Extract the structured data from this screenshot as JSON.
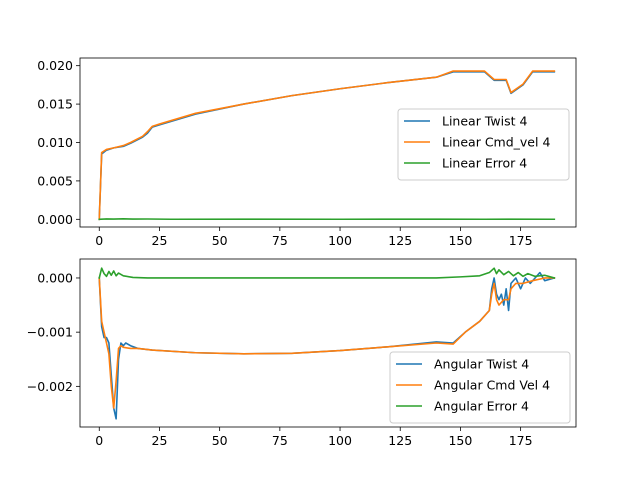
{
  "chart_data": [
    {
      "type": "line",
      "title": "",
      "xlabel": "",
      "ylabel": "",
      "xlim": [
        -8,
        198
      ],
      "ylim": [
        -0.001,
        0.021
      ],
      "xticks": [
        0,
        25,
        50,
        75,
        100,
        125,
        150,
        175
      ],
      "yticks": [
        0.0,
        0.005,
        0.01,
        0.015,
        0.02
      ],
      "ytick_labels": [
        "0.000",
        "0.005",
        "0.010",
        "0.015",
        "0.020"
      ],
      "grid": false,
      "legend_position": "center-right",
      "series": [
        {
          "name": "Linear Twist 4",
          "color": "#1f77b4",
          "points": [
            [
              0,
              0.0
            ],
            [
              1,
              0.0085
            ],
            [
              3,
              0.009
            ],
            [
              6,
              0.0093
            ],
            [
              10,
              0.0095
            ],
            [
              13,
              0.0099
            ],
            [
              18,
              0.0107
            ],
            [
              20,
              0.0112
            ],
            [
              22,
              0.012
            ],
            [
              25,
              0.0123
            ],
            [
              40,
              0.0137
            ],
            [
              60,
              0.015
            ],
            [
              80,
              0.0161
            ],
            [
              100,
              0.017
            ],
            [
              120,
              0.0178
            ],
            [
              140,
              0.0185
            ],
            [
              147,
              0.0192
            ],
            [
              160,
              0.0192
            ],
            [
              164,
              0.0181
            ],
            [
              169,
              0.0181
            ],
            [
              171,
              0.0164
            ],
            [
              176,
              0.0175
            ],
            [
              180,
              0.0192
            ],
            [
              189,
              0.0192
            ]
          ]
        },
        {
          "name": "Linear Cmd_vel 4",
          "color": "#ff7f0e",
          "points": [
            [
              0,
              0.0
            ],
            [
              1,
              0.0087
            ],
            [
              3,
              0.0091
            ],
            [
              6,
              0.0093
            ],
            [
              10,
              0.0096
            ],
            [
              13,
              0.01
            ],
            [
              18,
              0.0108
            ],
            [
              20,
              0.0114
            ],
            [
              22,
              0.0121
            ],
            [
              25,
              0.0124
            ],
            [
              40,
              0.0138
            ],
            [
              60,
              0.015
            ],
            [
              80,
              0.0161
            ],
            [
              100,
              0.017
            ],
            [
              120,
              0.0178
            ],
            [
              140,
              0.0185
            ],
            [
              147,
              0.0193
            ],
            [
              160,
              0.0193
            ],
            [
              164,
              0.0182
            ],
            [
              169,
              0.0182
            ],
            [
              171,
              0.0165
            ],
            [
              176,
              0.0176
            ],
            [
              180,
              0.0193
            ],
            [
              189,
              0.0193
            ]
          ]
        },
        {
          "name": "Linear Error 4",
          "color": "#2ca02c",
          "points": [
            [
              0,
              0.0
            ],
            [
              3,
              5e-05
            ],
            [
              6,
              3e-05
            ],
            [
              10,
              6e-05
            ],
            [
              14,
              3e-05
            ],
            [
              20,
              4e-05
            ],
            [
              30,
              1e-05
            ],
            [
              60,
              2e-05
            ],
            [
              100,
              1e-05
            ],
            [
              140,
              2e-05
            ],
            [
              160,
              1e-05
            ],
            [
              170,
              2e-05
            ],
            [
              189,
              1e-05
            ]
          ]
        }
      ]
    },
    {
      "type": "line",
      "title": "",
      "xlabel": "",
      "ylabel": "",
      "xlim": [
        -8,
        198
      ],
      "ylim": [
        -0.00275,
        0.00035
      ],
      "xticks": [
        0,
        25,
        50,
        75,
        100,
        125,
        150,
        175
      ],
      "yticks": [
        -0.002,
        -0.001,
        0.0
      ],
      "ytick_labels": [
        "−0.002",
        "−0.001",
        "0.000"
      ],
      "grid": false,
      "legend_position": "lower-right",
      "series": [
        {
          "name": "Angular Twist 4",
          "color": "#1f77b4",
          "points": [
            [
              0,
              0.0
            ],
            [
              1,
              -0.0009
            ],
            [
              2,
              -0.0011
            ],
            [
              3,
              -0.0011
            ],
            [
              4,
              -0.0012
            ],
            [
              5,
              -0.0018
            ],
            [
              6,
              -0.0024
            ],
            [
              7,
              -0.0026
            ],
            [
              8,
              -0.0015
            ],
            [
              9,
              -0.0012
            ],
            [
              10,
              -0.00125
            ],
            [
              11,
              -0.0012
            ],
            [
              13,
              -0.00125
            ],
            [
              16,
              -0.0013
            ],
            [
              22,
              -0.00133
            ],
            [
              40,
              -0.00138
            ],
            [
              60,
              -0.0014
            ],
            [
              80,
              -0.00139
            ],
            [
              100,
              -0.00134
            ],
            [
              120,
              -0.00127
            ],
            [
              140,
              -0.00118
            ],
            [
              147,
              -0.0012
            ],
            [
              152,
              -0.001
            ],
            [
              158,
              -0.0008
            ],
            [
              162,
              -0.0006
            ],
            [
              163,
              -0.0002
            ],
            [
              164,
              0.0
            ],
            [
              165,
              -0.0003
            ],
            [
              166,
              -0.0004
            ],
            [
              167,
              -0.0003
            ],
            [
              168,
              -0.0005
            ],
            [
              169,
              -0.0002
            ],
            [
              170,
              -0.0006
            ],
            [
              171,
              -0.0001
            ],
            [
              173,
              0.0
            ],
            [
              175,
              -0.0002
            ],
            [
              177,
              0.0
            ],
            [
              179,
              -0.0001
            ],
            [
              181,
              0.0
            ],
            [
              183,
              0.0001
            ],
            [
              185,
              -5e-05
            ],
            [
              189,
              0.0
            ]
          ]
        },
        {
          "name": "Angular Cmd Vel 4",
          "color": "#ff7f0e",
          "points": [
            [
              0,
              0.0
            ],
            [
              1,
              -0.0008
            ],
            [
              2,
              -0.001
            ],
            [
              3,
              -0.0012
            ],
            [
              4,
              -0.0014
            ],
            [
              5,
              -0.002
            ],
            [
              6,
              -0.0024
            ],
            [
              7,
              -0.0019
            ],
            [
              8,
              -0.0013
            ],
            [
              9,
              -0.00125
            ],
            [
              10,
              -0.00128
            ],
            [
              13,
              -0.0013
            ],
            [
              16,
              -0.0013
            ],
            [
              22,
              -0.00133
            ],
            [
              40,
              -0.00138
            ],
            [
              60,
              -0.0014
            ],
            [
              80,
              -0.00139
            ],
            [
              100,
              -0.00134
            ],
            [
              120,
              -0.00127
            ],
            [
              140,
              -0.0012
            ],
            [
              147,
              -0.00122
            ],
            [
              152,
              -0.001
            ],
            [
              158,
              -0.0008
            ],
            [
              162,
              -0.0006
            ],
            [
              163,
              -0.0003
            ],
            [
              164,
              -0.0001
            ],
            [
              165,
              -0.0004
            ],
            [
              166,
              -0.0005
            ],
            [
              168,
              -0.0004
            ],
            [
              170,
              -0.0004
            ],
            [
              171,
              -0.0002
            ],
            [
              173,
              -0.0001
            ],
            [
              176,
              -0.0001
            ],
            [
              180,
              -5e-05
            ],
            [
              185,
              0.0
            ],
            [
              189,
              0.0
            ]
          ]
        },
        {
          "name": "Angular Error 4",
          "color": "#2ca02c",
          "points": [
            [
              0,
              0.0
            ],
            [
              1,
              0.00018
            ],
            [
              2,
              8e-05
            ],
            [
              3,
              3e-05
            ],
            [
              4,
              0.00012
            ],
            [
              5,
              5e-05
            ],
            [
              6,
              0.00013
            ],
            [
              7,
              4e-05
            ],
            [
              8,
              9e-05
            ],
            [
              10,
              4e-05
            ],
            [
              14,
              1e-05
            ],
            [
              20,
              0.0
            ],
            [
              60,
              0.0
            ],
            [
              100,
              0.0
            ],
            [
              140,
              0.0
            ],
            [
              150,
              2e-05
            ],
            [
              158,
              4e-05
            ],
            [
              162,
              0.0001
            ],
            [
              164,
              0.00018
            ],
            [
              165,
              8e-05
            ],
            [
              166,
              0.00015
            ],
            [
              168,
              6e-05
            ],
            [
              170,
              0.00012
            ],
            [
              172,
              4e-05
            ],
            [
              174,
              0.0001
            ],
            [
              176,
              3e-05
            ],
            [
              178,
              8e-05
            ],
            [
              181,
              3e-05
            ],
            [
              185,
              5e-05
            ],
            [
              189,
              0.0
            ]
          ]
        }
      ]
    }
  ]
}
